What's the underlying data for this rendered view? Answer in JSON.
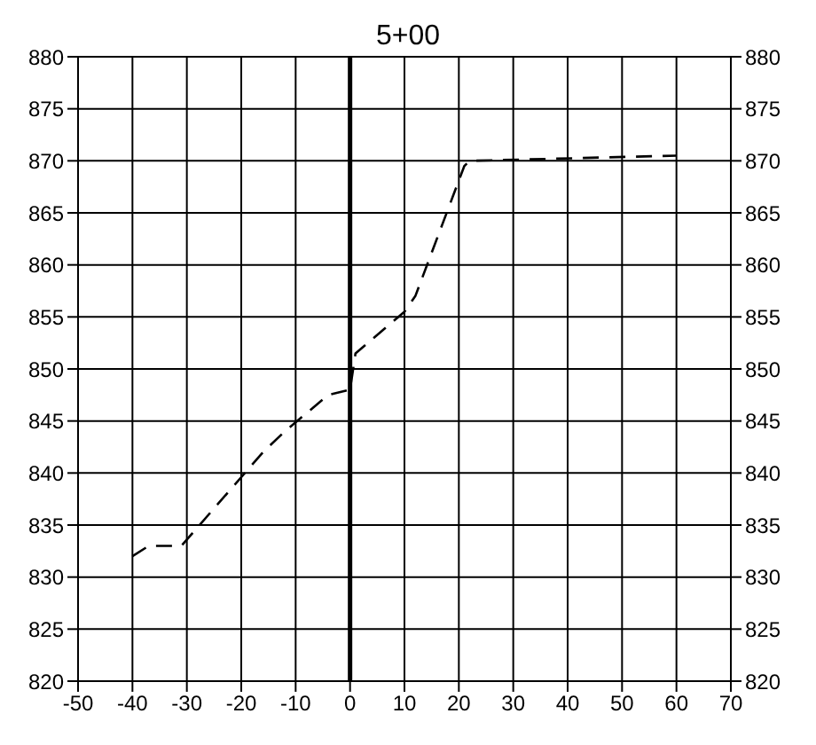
{
  "chart_data": {
    "type": "line",
    "title": "5+00",
    "x": [
      -40,
      -37,
      -31,
      -26,
      -16,
      -12,
      -4,
      0,
      1,
      10,
      12,
      21,
      22,
      60
    ],
    "values": [
      832,
      833,
      833,
      836,
      842,
      844,
      847.5,
      848,
      851.5,
      855.5,
      857,
      869.5,
      870,
      870.5
    ],
    "color": "#000000",
    "line_style": "dashed",
    "marker": "none",
    "xlim": [
      -50,
      70
    ],
    "xticks": [
      -50,
      -40,
      -30,
      -20,
      -10,
      0,
      10,
      20,
      30,
      40,
      50,
      60,
      70
    ],
    "ylim": [
      820,
      880
    ],
    "yticks": [
      820,
      825,
      830,
      835,
      840,
      845,
      850,
      855,
      860,
      865,
      870,
      875,
      880
    ],
    "y2lim": [
      820,
      880
    ],
    "y2ticks": [
      820,
      825,
      830,
      835,
      840,
      845,
      850,
      855,
      860,
      865,
      870,
      875,
      880
    ],
    "ref_lines": [
      {
        "axis": "x",
        "value": 0,
        "color": "#000000"
      }
    ],
    "grid": true
  }
}
